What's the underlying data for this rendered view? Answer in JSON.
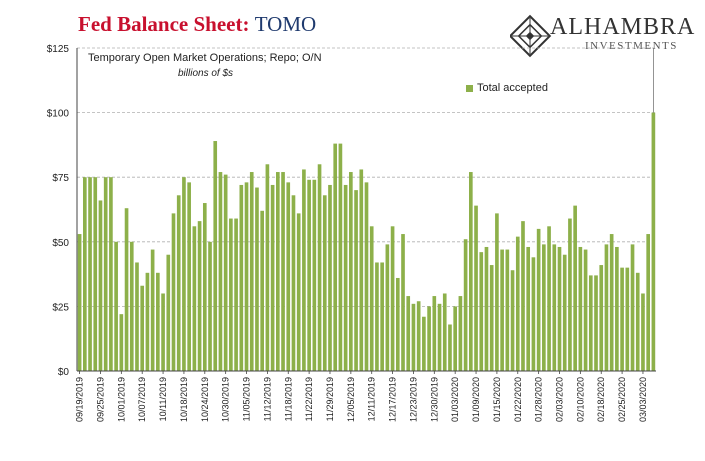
{
  "header": {
    "title_main": "Fed Balance Sheet",
    "title_sep": ": ",
    "title_tag": "TOMO",
    "brand_name": "ALHAMBRA",
    "brand_sub": "INVESTMENTS"
  },
  "colors": {
    "bar": "#8db04a",
    "title_red": "#c8102e",
    "title_blue": "#1f3a6e",
    "grid": "#b0b0b0"
  },
  "chart_data": {
    "type": "bar",
    "title": "Fed Balance Sheet: TOMO",
    "subtitle": "Temporary Open Market Operations; Repo; O/N",
    "units": "billions of $s",
    "series": [
      {
        "name": "Total accepted",
        "values": [
          53,
          75,
          75,
          75,
          66,
          75,
          75,
          50,
          22,
          63,
          50,
          42,
          33,
          38,
          47,
          38,
          30,
          45,
          61,
          68,
          75,
          73,
          56,
          58,
          65,
          50,
          89,
          77,
          76,
          59,
          59,
          72,
          73,
          77,
          71,
          62,
          80,
          72,
          77,
          77,
          73,
          68,
          61,
          78,
          74,
          74,
          80,
          68,
          72,
          88,
          88,
          72,
          77,
          70,
          78,
          73,
          56,
          42,
          42,
          49,
          56,
          36,
          53,
          29,
          26,
          27,
          21,
          25,
          29,
          26,
          30,
          18,
          25,
          29,
          51,
          77,
          64,
          46,
          48,
          41,
          61,
          47,
          47,
          39,
          52,
          58,
          48,
          44,
          55,
          49,
          56,
          49,
          48,
          45,
          59,
          64,
          48,
          47,
          37,
          37,
          41,
          49,
          53,
          48,
          40,
          40,
          49,
          38,
          30,
          53,
          100
        ]
      }
    ],
    "y_ticks": [
      "$0",
      "$25",
      "$50",
      "$75",
      "$100",
      "$125"
    ],
    "x_labels": [
      "09/19/2019",
      "09/25/2019",
      "10/01/2019",
      "10/07/2019",
      "10/11/2019",
      "10/18/2019",
      "10/24/2019",
      "10/30/2019",
      "11/05/2019",
      "11/12/2019",
      "11/18/2019",
      "11/22/2019",
      "11/29/2019",
      "12/05/2019",
      "12/11/2019",
      "12/17/2019",
      "12/23/2019",
      "12/30/2019",
      "01/03/2020",
      "01/09/2020",
      "01/15/2020",
      "01/22/2020",
      "01/28/2020",
      "02/03/2020",
      "02/10/2020",
      "02/18/2020",
      "02/25/2020",
      "03/03/2020"
    ],
    "ylim": [
      0,
      125
    ],
    "grid": true,
    "legend": "top-right"
  }
}
